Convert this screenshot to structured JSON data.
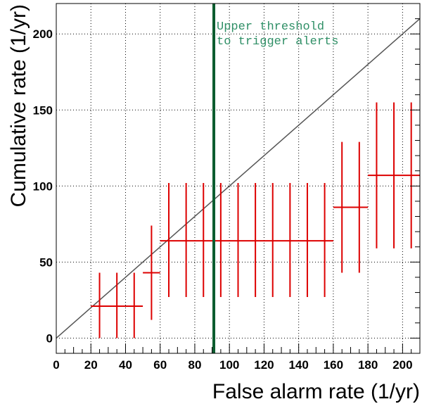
{
  "chart_data": {
    "type": "scatter",
    "title": "",
    "xlabel": "False alarm rate (1/yr)",
    "ylabel": "Cumulative rate (1/yr)",
    "xlim": [
      0,
      210
    ],
    "ylim": [
      -10,
      220
    ],
    "x_ticks": [
      0,
      20,
      40,
      60,
      80,
      100,
      120,
      140,
      160,
      180,
      200
    ],
    "y_ticks": [
      0,
      50,
      100,
      150,
      200
    ],
    "grid": true,
    "reference_line": {
      "name": "",
      "x": [
        0,
        210
      ],
      "y": [
        0,
        210
      ],
      "color": "#555555"
    },
    "threshold": {
      "x": 91,
      "color": "#0b5c2e",
      "label_lines": [
        "Upper threshold",
        "to trigger alerts"
      ],
      "label_color": "#2f8f66"
    },
    "series": [
      {
        "name": "",
        "color": "#dd0000",
        "points": [
          {
            "x": 25,
            "y": 21,
            "y_low": 0,
            "y_high": 43
          },
          {
            "x": 35,
            "y": 21,
            "y_low": 0,
            "y_high": 43
          },
          {
            "x": 45,
            "y": 21,
            "y_low": 0,
            "y_high": 43
          },
          {
            "x": 55,
            "y": 43,
            "y_low": 12,
            "y_high": 74
          },
          {
            "x": 65,
            "y": 64,
            "y_low": 27,
            "y_high": 102
          },
          {
            "x": 75,
            "y": 64,
            "y_low": 27,
            "y_high": 102
          },
          {
            "x": 85,
            "y": 64,
            "y_low": 27,
            "y_high": 102
          },
          {
            "x": 95,
            "y": 64,
            "y_low": 27,
            "y_high": 102
          },
          {
            "x": 105,
            "y": 64,
            "y_low": 27,
            "y_high": 102
          },
          {
            "x": 115,
            "y": 64,
            "y_low": 27,
            "y_high": 102
          },
          {
            "x": 125,
            "y": 64,
            "y_low": 27,
            "y_high": 102
          },
          {
            "x": 135,
            "y": 64,
            "y_low": 27,
            "y_high": 102
          },
          {
            "x": 145,
            "y": 64,
            "y_low": 27,
            "y_high": 102
          },
          {
            "x": 155,
            "y": 64,
            "y_low": 27,
            "y_high": 102
          },
          {
            "x": 165,
            "y": 86,
            "y_low": 43,
            "y_high": 129
          },
          {
            "x": 175,
            "y": 86,
            "y_low": 43,
            "y_high": 129
          },
          {
            "x": 185,
            "y": 107,
            "y_low": 59,
            "y_high": 155
          },
          {
            "x": 195,
            "y": 107,
            "y_low": 59,
            "y_high": 155
          },
          {
            "x": 205,
            "y": 107,
            "y_low": 59,
            "y_high": 155
          }
        ],
        "horizontal_segments": [
          {
            "x_start": 20,
            "x_end": 50,
            "y": 21
          },
          {
            "x_start": 50,
            "x_end": 60,
            "y": 43
          },
          {
            "x_start": 60,
            "x_end": 160,
            "y": 64
          },
          {
            "x_start": 160,
            "x_end": 180,
            "y": 86
          },
          {
            "x_start": 180,
            "x_end": 210,
            "y": 107
          }
        ]
      }
    ]
  }
}
